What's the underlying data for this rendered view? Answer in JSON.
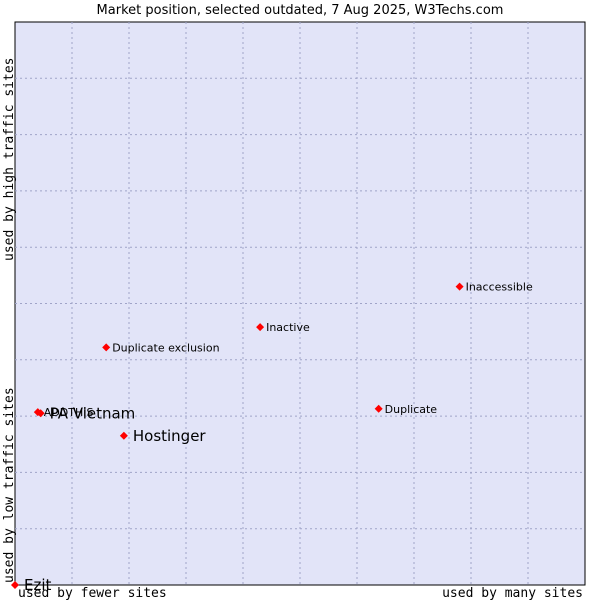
{
  "chart_data": {
    "type": "scatter",
    "title": "Market position, selected outdated, 7 Aug 2025, W3Techs.com",
    "xlabel_left": "used by fewer sites",
    "xlabel_right": "used by many sites",
    "ylabel_bottom": "used by low traffic sites",
    "ylabel_top": "used by high traffic sites",
    "xlim": [
      0,
      10
    ],
    "ylim": [
      0,
      10
    ],
    "grid": true,
    "colors": {
      "plot_bg": "#e2e4f8",
      "grid": "#a0a4c8",
      "marker": "#ff0000",
      "border": "#000000"
    },
    "points": [
      {
        "name": "Inaccessible",
        "x": 7.8,
        "y": 5.3,
        "size": "small"
      },
      {
        "name": "Inactive",
        "x": 4.3,
        "y": 4.58,
        "size": "small"
      },
      {
        "name": "Duplicate exclusion",
        "x": 1.6,
        "y": 4.22,
        "size": "small"
      },
      {
        "name": "Duplicate",
        "x": 6.38,
        "y": 3.13,
        "size": "small"
      },
      {
        "name": "Hostinger",
        "x": 1.91,
        "y": 2.65,
        "size": "large"
      },
      {
        "name": "ADDTHIS",
        "x": 0.4,
        "y": 3.07,
        "size": "small"
      },
      {
        "name": "PA Vietnam",
        "x": 0.45,
        "y": 3.05,
        "size": "large"
      },
      {
        "name": "Ezit",
        "x": 0.0,
        "y": 0.0,
        "size": "large"
      }
    ]
  }
}
